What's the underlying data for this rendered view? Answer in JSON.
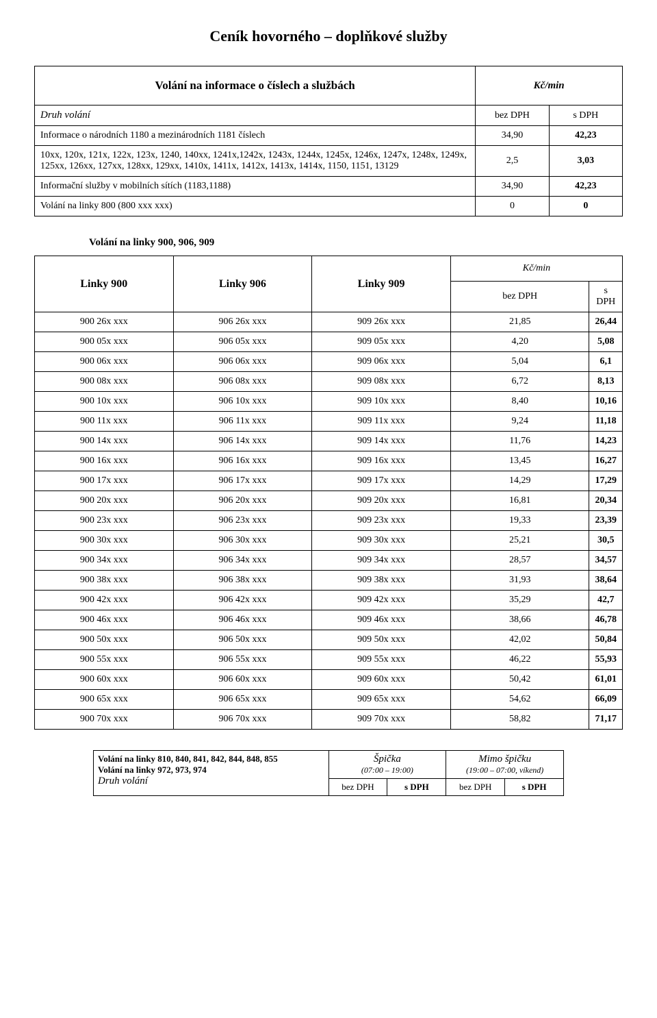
{
  "page_title": "Ceník hovorného – doplňkové služby",
  "info_section": {
    "heading": "Volání na informace o číslech a službách",
    "unit": "Kč/min",
    "druh": "Druh volání",
    "col_bez": "bez DPH",
    "col_s": "s DPH",
    "rows": [
      {
        "desc": "Informace o národních 1180 a mezinárodních 1181 číslech",
        "bez": "34,90",
        "s": "42,23",
        "bold_s": true
      },
      {
        "desc": "10xx, 120x, 121x, 122x, 123x, 1240, 140xx, 1241x,1242x, 1243x, 1244x, 1245x, 1246x, 1247x, 1248x, 1249x, 125xx, 126xx, 127xx, 128xx, 129xx, 1410x, 1411x, 1412x, 1413x, 1414x, 1150, 1151, 13129",
        "bez": "2,5",
        "s": "3,03",
        "bold_s": true
      },
      {
        "desc": "Informační služby v mobilních sítích (1183,1188)",
        "bez": "34,90",
        "s": "42,23",
        "bold_s": true
      },
      {
        "desc": "Volání na linky 800 (800 xxx xxx)",
        "bez": "0",
        "s": "0",
        "bold_s": true
      }
    ]
  },
  "linky_section": {
    "subtitle": "Volání na linky 900, 906, 909",
    "cols": [
      "Linky 900",
      "Linky 906",
      "Linky 909"
    ],
    "unit": "Kč/min",
    "col_bez": "bez DPH",
    "col_s": "s DPH",
    "rows": [
      {
        "c1": "900 26x xxx",
        "c2": "906 26x xxx",
        "c3": "909 26x xxx",
        "bez": "21,85",
        "s": "26,44"
      },
      {
        "c1": "900 05x xxx",
        "c2": "906 05x xxx",
        "c3": "909 05x xxx",
        "bez": "4,20",
        "s": "5,08"
      },
      {
        "c1": "900 06x xxx",
        "c2": "906 06x xxx",
        "c3": "909 06x xxx",
        "bez": "5,04",
        "s": "6,1"
      },
      {
        "c1": "900 08x xxx",
        "c2": "906 08x xxx",
        "c3": "909 08x xxx",
        "bez": "6,72",
        "s": "8,13"
      },
      {
        "c1": "900 10x xxx",
        "c2": "906 10x xxx",
        "c3": "909 10x xxx",
        "bez": "8,40",
        "s": "10,16"
      },
      {
        "c1": "900 11x xxx",
        "c2": "906 11x xxx",
        "c3": "909 11x xxx",
        "bez": "9,24",
        "s": "11,18"
      },
      {
        "c1": "900 14x xxx",
        "c2": "906 14x xxx",
        "c3": "909 14x xxx",
        "bez": "11,76",
        "s": "14,23"
      },
      {
        "c1": "900 16x xxx",
        "c2": "906 16x xxx",
        "c3": "909 16x xxx",
        "bez": "13,45",
        "s": "16,27"
      },
      {
        "c1": "900 17x xxx",
        "c2": "906 17x xxx",
        "c3": "909 17x xxx",
        "bez": "14,29",
        "s": "17,29"
      },
      {
        "c1": "900 20x xxx",
        "c2": "906 20x xxx",
        "c3": "909 20x xxx",
        "bez": "16,81",
        "s": "20,34"
      },
      {
        "c1": "900 23x xxx",
        "c2": "906 23x xxx",
        "c3": "909 23x xxx",
        "bez": "19,33",
        "s": "23,39"
      },
      {
        "c1": "900 30x xxx",
        "c2": "906 30x xxx",
        "c3": "909 30x xxx",
        "bez": "25,21",
        "s": "30,5"
      },
      {
        "c1": "900 34x xxx",
        "c2": "906 34x xxx",
        "c3": "909 34x xxx",
        "bez": "28,57",
        "s": "34,57"
      },
      {
        "c1": "900 38x xxx",
        "c2": "906 38x xxx",
        "c3": "909 38x xxx",
        "bez": "31,93",
        "s": "38,64"
      },
      {
        "c1": "900 42x xxx",
        "c2": "906 42x xxx",
        "c3": "909 42x xxx",
        "bez": "35,29",
        "s": "42,7"
      },
      {
        "c1": "900 46x xxx",
        "c2": "906 46x xxx",
        "c3": "909 46x xxx",
        "bez": "38,66",
        "s": "46,78"
      },
      {
        "c1": "900 50x xxx",
        "c2": "906 50x xxx",
        "c3": "909 50x xxx",
        "bez": "42,02",
        "s": "50,84"
      },
      {
        "c1": "900 55x xxx",
        "c2": "906 55x xxx",
        "c3": "909 55x xxx",
        "bez": "46,22",
        "s": "55,93"
      },
      {
        "c1": "900 60x xxx",
        "c2": "906 60x xxx",
        "c3": "909 60x xxx",
        "bez": "50,42",
        "s": "61,01"
      },
      {
        "c1": "900 65x xxx",
        "c2": "906 65x xxx",
        "c3": "909 65x xxx",
        "bez": "54,62",
        "s": "66,09"
      },
      {
        "c1": "900 70x xxx",
        "c2": "906 70x xxx",
        "c3": "909 70x xxx",
        "bez": "58,82",
        "s": "71,17"
      }
    ]
  },
  "bottom_section": {
    "line1": "Volání na linky 810, 840, 841, 842, 844, 848, 855",
    "line2": "Volání na linky 972, 973, 974",
    "druh": "Druh volání",
    "peak_title": "Špička",
    "peak_time": "(07:00 – 19:00)",
    "offpeak_title": "Mimo špičku",
    "offpeak_time": "(19:00 – 07:00, víkend)",
    "col_bez": "bez DPH",
    "col_s": "s DPH"
  }
}
